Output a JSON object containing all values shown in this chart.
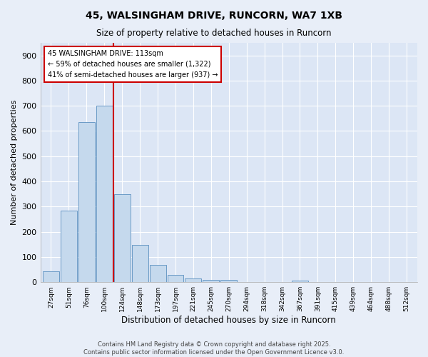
{
  "title": "45, WALSINGHAM DRIVE, RUNCORN, WA7 1XB",
  "subtitle": "Size of property relative to detached houses in Runcorn",
  "xlabel": "Distribution of detached houses by size in Runcorn",
  "ylabel": "Number of detached properties",
  "bar_color": "#c5d9ed",
  "bar_edge_color": "#5a8fc0",
  "background_color": "#e8eef8",
  "plot_bg_color": "#dce6f5",
  "grid_color": "#ffffff",
  "categories": [
    "27sqm",
    "51sqm",
    "76sqm",
    "100sqm",
    "124sqm",
    "148sqm",
    "173sqm",
    "197sqm",
    "221sqm",
    "245sqm",
    "270sqm",
    "294sqm",
    "318sqm",
    "342sqm",
    "367sqm",
    "391sqm",
    "415sqm",
    "439sqm",
    "464sqm",
    "488sqm",
    "512sqm"
  ],
  "values": [
    42,
    283,
    635,
    700,
    350,
    148,
    68,
    28,
    15,
    10,
    8,
    0,
    0,
    0,
    5,
    0,
    0,
    0,
    0,
    0,
    0
  ],
  "vline_x": 3.5,
  "vline_color": "#cc0000",
  "annotation_title": "45 WALSINGHAM DRIVE: 113sqm",
  "annotation_line1": "← 59% of detached houses are smaller (1,322)",
  "annotation_line2": "41% of semi-detached houses are larger (937) →",
  "ylim": [
    0,
    950
  ],
  "yticks": [
    0,
    100,
    200,
    300,
    400,
    500,
    600,
    700,
    800,
    900
  ],
  "footer_line1": "Contains HM Land Registry data © Crown copyright and database right 2025.",
  "footer_line2": "Contains public sector information licensed under the Open Government Licence v3.0."
}
